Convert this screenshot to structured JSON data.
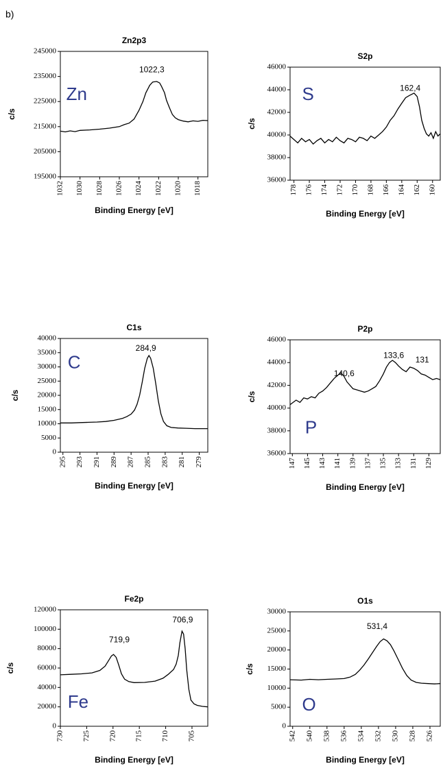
{
  "figure_label": "b)",
  "chart_data": [
    {
      "type": "line",
      "title": "Zn2p3",
      "x_label": "Binding Energy [eV]",
      "y_label": "c/s",
      "element_label": "Zn",
      "annotations": [
        "1022,3"
      ],
      "color": "#000000",
      "xlim": [
        1032,
        1017
      ],
      "xticks": [
        1032,
        1030,
        1028,
        1026,
        1024,
        1022,
        1020,
        1018
      ],
      "ylim": [
        195000,
        245000
      ],
      "yticks": [
        195000,
        205000,
        215000,
        225000,
        235000,
        245000
      ],
      "x": [
        1032,
        1031.5,
        1031,
        1030.5,
        1030,
        1029,
        1028,
        1027,
        1026,
        1025.5,
        1025,
        1024.5,
        1024,
        1023.6,
        1023.3,
        1022.9,
        1022.6,
        1022.2,
        1021.9,
        1021.7,
        1021.4,
        1021.2,
        1020.9,
        1020.6,
        1020.3,
        1020,
        1019.5,
        1019,
        1018.5,
        1018,
        1017.5,
        1017
      ],
      "values": [
        213200,
        212900,
        213300,
        213000,
        213500,
        213700,
        214000,
        214400,
        215000,
        215800,
        216400,
        218000,
        221500,
        225000,
        228500,
        231500,
        232800,
        233000,
        232400,
        231000,
        228500,
        225500,
        222500,
        219800,
        218500,
        217800,
        217200,
        216900,
        217300,
        217100,
        217500,
        217400
      ]
    },
    {
      "type": "line",
      "title": "S2p",
      "x_label": "Binding Energy [eV]",
      "y_label": "c/s",
      "element_label": "S",
      "annotations": [
        "162,4"
      ],
      "color": "#000000",
      "xlim": [
        178.5,
        159
      ],
      "xticks": [
        178,
        176,
        174,
        172,
        170,
        168,
        166,
        164,
        162,
        160
      ],
      "ylim": [
        36000,
        46000
      ],
      "yticks": [
        36000,
        38000,
        40000,
        42000,
        44000,
        46000
      ],
      "x": [
        178.5,
        178,
        177.5,
        177,
        176.5,
        176,
        175.5,
        175,
        174.5,
        174,
        173.5,
        173,
        172.5,
        172,
        171.5,
        171,
        170.5,
        170,
        169.5,
        169,
        168.5,
        168,
        167.5,
        167,
        166.5,
        166,
        165.5,
        165,
        164.5,
        164,
        163.5,
        163,
        162.4,
        162,
        161.7,
        161.4,
        161.1,
        160.8,
        160.5,
        160.2,
        159.9,
        159.6,
        159.3,
        159
      ],
      "values": [
        39900,
        39600,
        39300,
        39700,
        39400,
        39600,
        39200,
        39500,
        39700,
        39300,
        39600,
        39400,
        39800,
        39500,
        39300,
        39700,
        39600,
        39400,
        39800,
        39700,
        39500,
        39900,
        39700,
        40000,
        40300,
        40700,
        41300,
        41700,
        42300,
        42800,
        43300,
        43500,
        43700,
        43400,
        42500,
        41300,
        40600,
        40100,
        39900,
        40200,
        39700,
        40300,
        39900,
        40100
      ]
    },
    {
      "type": "line",
      "title": "C1s",
      "x_label": "Binding Energy [eV]",
      "y_label": "c/s",
      "element_label": "C",
      "annotations": [
        "284,9"
      ],
      "color": "#000000",
      "xlim": [
        295.3,
        278
      ],
      "xticks": [
        295,
        293,
        291,
        289,
        287,
        285,
        283,
        281,
        279
      ],
      "ylim": [
        0,
        40000
      ],
      "yticks": [
        0,
        5000,
        10000,
        15000,
        20000,
        25000,
        30000,
        35000,
        40000
      ],
      "x": [
        295.3,
        294,
        293,
        292,
        291,
        290,
        289,
        288,
        287.5,
        287,
        286.6,
        286.3,
        286,
        285.7,
        285.4,
        285.1,
        284.9,
        284.7,
        284.4,
        284.1,
        283.8,
        283.5,
        283.2,
        282.8,
        282.3,
        281.5,
        280.5,
        279.5,
        278.5,
        278
      ],
      "values": [
        10300,
        10300,
        10400,
        10500,
        10600,
        10800,
        11200,
        11900,
        12500,
        13400,
        14800,
        16800,
        20000,
        24500,
        29500,
        33000,
        34000,
        33000,
        29500,
        24000,
        18000,
        13500,
        10800,
        9300,
        8700,
        8500,
        8400,
        8300,
        8300,
        8300
      ]
    },
    {
      "type": "line",
      "title": "P2p",
      "x_label": "Binding Energy [eV]",
      "y_label": "c/s",
      "element_label": "P",
      "annotations": [
        "140,6",
        "133,6",
        "131"
      ],
      "color": "#000000",
      "xlim": [
        147.3,
        127.5
      ],
      "xticks": [
        147,
        145,
        143,
        141,
        139,
        137,
        135,
        133,
        131,
        129
      ],
      "ylim": [
        36000,
        46000
      ],
      "yticks": [
        36000,
        38000,
        40000,
        42000,
        44000,
        46000
      ],
      "x": [
        147.3,
        146.5,
        146,
        145.5,
        145,
        144.5,
        144,
        143.5,
        143,
        142.5,
        142,
        141.5,
        141,
        140.6,
        140.2,
        139.8,
        139.4,
        139,
        138.5,
        138,
        137.5,
        137,
        136.5,
        136,
        135.5,
        135,
        134.6,
        134.2,
        133.8,
        133.4,
        133,
        132.5,
        132,
        131.5,
        131,
        130.5,
        130,
        129.5,
        129,
        128.5,
        128,
        127.5
      ],
      "values": [
        40300,
        40700,
        40500,
        40900,
        40800,
        41000,
        40900,
        41300,
        41500,
        41800,
        42200,
        42600,
        42900,
        43100,
        42800,
        42300,
        42000,
        41700,
        41600,
        41500,
        41400,
        41500,
        41700,
        41900,
        42400,
        43000,
        43600,
        44000,
        44200,
        44000,
        43700,
        43400,
        43200,
        43600,
        43500,
        43300,
        43000,
        42900,
        42700,
        42500,
        42600,
        42500
      ]
    },
    {
      "type": "line",
      "title": "Fe2p",
      "x_label": "Binding Energy [eV]",
      "y_label": "c/s",
      "element_label": "Fe",
      "annotations": [
        "719,9",
        "706,9"
      ],
      "color": "#000000",
      "xlim": [
        730,
        702
      ],
      "xticks": [
        730,
        725,
        720,
        715,
        710,
        705
      ],
      "ylim": [
        0,
        120000
      ],
      "yticks": [
        0,
        20000,
        40000,
        60000,
        80000,
        100000,
        120000
      ],
      "x": [
        730,
        728,
        726,
        724,
        722.5,
        721.5,
        720.8,
        720.3,
        719.9,
        719.4,
        718.9,
        718.4,
        717.8,
        717,
        716,
        714,
        712,
        710.5,
        709.5,
        708.5,
        708,
        707.6,
        707.3,
        706.9,
        706.6,
        706.3,
        706,
        705.6,
        705.2,
        704.6,
        704,
        703,
        702
      ],
      "values": [
        53000,
        53500,
        54000,
        55000,
        57500,
        62000,
        68000,
        72500,
        74000,
        71000,
        63000,
        54000,
        48500,
        46000,
        45000,
        45200,
        46500,
        49500,
        53500,
        58500,
        64000,
        73000,
        86000,
        98000,
        95000,
        80000,
        58000,
        38000,
        27000,
        23000,
        21500,
        20500,
        20000
      ]
    },
    {
      "type": "line",
      "title": "O1s",
      "x_label": "Binding Energy [eV]",
      "y_label": "c/s",
      "element_label": "O",
      "annotations": [
        "531,4"
      ],
      "color": "#000000",
      "xlim": [
        542.3,
        524.8
      ],
      "xticks": [
        542,
        540,
        538,
        536,
        534,
        532,
        530,
        528,
        526
      ],
      "ylim": [
        0,
        30000
      ],
      "yticks": [
        0,
        5000,
        10000,
        15000,
        20000,
        25000,
        30000
      ],
      "x": [
        542.3,
        541,
        540,
        539,
        538,
        537,
        536,
        535.3,
        534.7,
        534.2,
        533.7,
        533.2,
        532.7,
        532.2,
        531.8,
        531.4,
        531,
        530.6,
        530.2,
        529.7,
        529.2,
        528.7,
        528.2,
        527.6,
        527,
        526.2,
        525.5,
        524.8
      ],
      "values": [
        12200,
        12100,
        12300,
        12200,
        12300,
        12400,
        12500,
        12900,
        13600,
        14700,
        16000,
        17600,
        19300,
        21000,
        22200,
        22900,
        22400,
        21400,
        19800,
        17500,
        15200,
        13300,
        12100,
        11500,
        11300,
        11200,
        11100,
        11200
      ]
    }
  ]
}
